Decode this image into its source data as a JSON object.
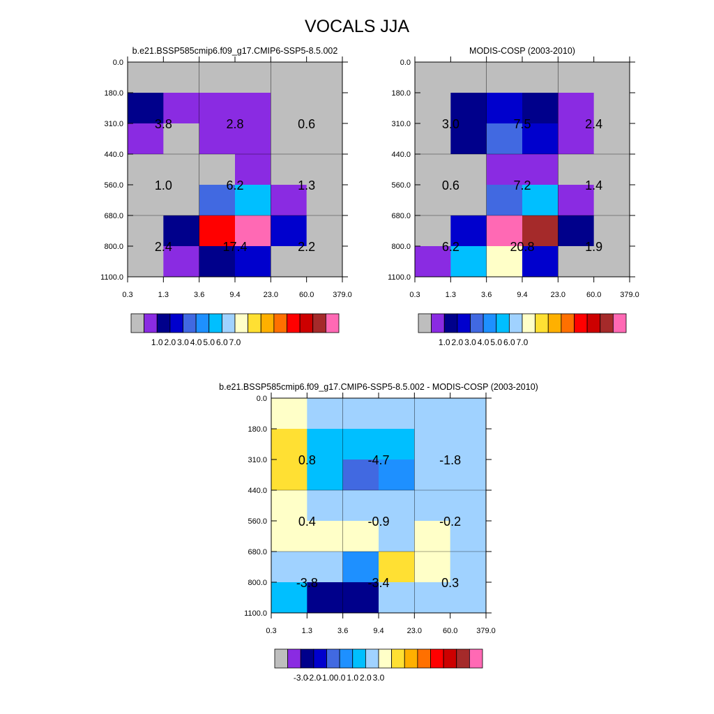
{
  "title": "VOCALS JJA",
  "y_ticks": [
    "0.0",
    "180.0",
    "310.0",
    "440.0",
    "560.0",
    "680.0",
    "800.0",
    "1100.0"
  ],
  "x_ticks": [
    "0.3",
    "1.3",
    "3.6",
    "9.4",
    "23.0",
    "60.0",
    "379.0"
  ],
  "chart_data": [
    {
      "type": "heatmap",
      "title": "b.e21.BSSP585cmip6.f09_g17.CMIP6-SSP5-8.5.002",
      "palette": [
        "#bebebe",
        "#8a2be2",
        "#00008b",
        "#0000cd",
        "#4169e1",
        "#1e90ff",
        "#00bfff",
        "#a0d2ff",
        "#ffffc8",
        "#ffe033",
        "#ffb000",
        "#ff7000",
        "#ff0000",
        "#cd0000",
        "#a52a2a",
        "#ff69b4"
      ],
      "colorbar_labels": [
        "1.0",
        "2.0",
        "3.0",
        "4.0",
        "5.0",
        "6.0",
        "7.0"
      ],
      "cells": [
        [
          0,
          0,
          0,
          0,
          0,
          0
        ],
        [
          2,
          1,
          1,
          1,
          0,
          0
        ],
        [
          1,
          0,
          1,
          1,
          0,
          0
        ],
        [
          0,
          0,
          0,
          1,
          0,
          0
        ],
        [
          0,
          0,
          4,
          6,
          1,
          0
        ],
        [
          0,
          2,
          12,
          15,
          3,
          0
        ],
        [
          0,
          1,
          2,
          3,
          0,
          0
        ]
      ],
      "box_values": [
        [
          "3.8",
          "2.8",
          "0.6"
        ],
        [
          "1.0",
          "6.2",
          "1.3"
        ],
        [
          "2.4",
          "17.4",
          "2.2"
        ]
      ]
    },
    {
      "type": "heatmap",
      "title": "MODIS-COSP (2003-2010)",
      "palette": [
        "#bebebe",
        "#8a2be2",
        "#00008b",
        "#0000cd",
        "#4169e1",
        "#1e90ff",
        "#00bfff",
        "#a0d2ff",
        "#ffffc8",
        "#ffe033",
        "#ffb000",
        "#ff7000",
        "#ff0000",
        "#cd0000",
        "#a52a2a",
        "#ff69b4"
      ],
      "colorbar_labels": [
        "1.0",
        "2.0",
        "3.0",
        "4.0",
        "5.0",
        "6.0",
        "7.0"
      ],
      "cells": [
        [
          0,
          0,
          0,
          0,
          0,
          0
        ],
        [
          0,
          2,
          3,
          2,
          1,
          0
        ],
        [
          0,
          2,
          4,
          3,
          1,
          0
        ],
        [
          0,
          0,
          1,
          1,
          0,
          0
        ],
        [
          0,
          0,
          4,
          6,
          1,
          0
        ],
        [
          0,
          3,
          15,
          14,
          2,
          0
        ],
        [
          1,
          6,
          8,
          3,
          0,
          0
        ]
      ],
      "box_values": [
        [
          "3.0",
          "7.5",
          "2.4"
        ],
        [
          "0.6",
          "7.2",
          "1.4"
        ],
        [
          "6.2",
          "20.8",
          "1.9"
        ]
      ]
    },
    {
      "type": "heatmap",
      "title": "b.e21.BSSP585cmip6.f09_g17.CMIP6-SSP5-8.5.002 - MODIS-COSP (2003-2010)",
      "palette": [
        "#bebebe",
        "#8a2be2",
        "#00008b",
        "#0000cd",
        "#4169e1",
        "#1e90ff",
        "#00bfff",
        "#a0d2ff",
        "#ffffc8",
        "#ffe033",
        "#ffb000",
        "#ff7000",
        "#ff0000",
        "#cd0000",
        "#a52a2a",
        "#ff69b4"
      ],
      "colorbar_labels": [
        "-3.0",
        "-2.0",
        "-1.0",
        "0.0",
        "1.0",
        "2.0",
        "3.0"
      ],
      "cells": [
        [
          8,
          7,
          7,
          7,
          7,
          7
        ],
        [
          9,
          6,
          6,
          6,
          7,
          7
        ],
        [
          9,
          6,
          4,
          5,
          7,
          7
        ],
        [
          8,
          7,
          7,
          7,
          7,
          7
        ],
        [
          8,
          8,
          8,
          7,
          8,
          7
        ],
        [
          7,
          7,
          5,
          9,
          8,
          7
        ],
        [
          6,
          2,
          2,
          7,
          7,
          7
        ]
      ],
      "box_values": [
        [
          "0.8",
          "-4.7",
          "-1.8"
        ],
        [
          "0.4",
          "-0.9",
          "-0.2"
        ],
        [
          "-3.8",
          "-3.4",
          "0.3"
        ]
      ]
    }
  ]
}
